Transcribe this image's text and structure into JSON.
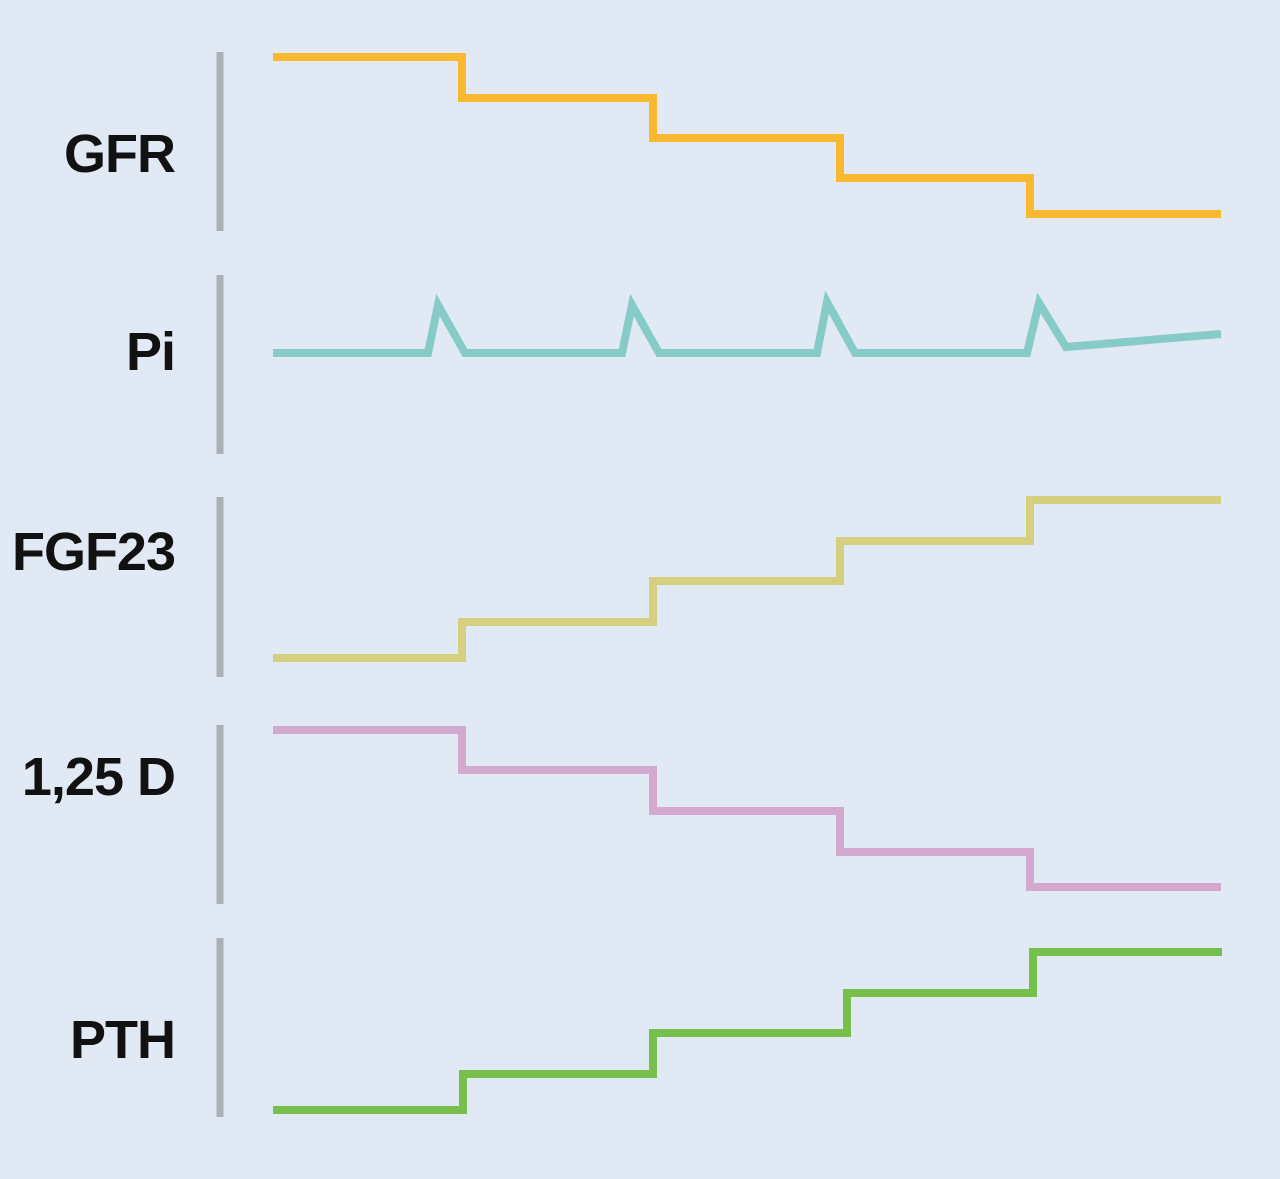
{
  "colors": {
    "background": "#e0e9f4",
    "axis": "#a9b0b6",
    "label": "#111111"
  },
  "rows": [
    {
      "label": "GFR",
      "color": "#f9b92e",
      "trend": "step-down",
      "levels": [
        5,
        4,
        3,
        2,
        1.1
      ]
    },
    {
      "label": "Pi",
      "color": "#86cbc7",
      "trend": "flat-with-spikes",
      "levels": [
        1,
        1,
        1,
        1,
        1.5
      ],
      "spikes": 4
    },
    {
      "label": "FGF23",
      "color": "#d6cf80",
      "trend": "step-up",
      "levels": [
        1,
        1.9,
        2.9,
        3.9,
        4.9
      ]
    },
    {
      "label": "1,25 D",
      "color": "#d4a9d0",
      "trend": "step-down",
      "levels": [
        5,
        4,
        3,
        2,
        1.1
      ]
    },
    {
      "label": "PTH",
      "color": "#78c04c",
      "trend": "step-up",
      "levels": [
        1,
        1.9,
        2.9,
        3.9,
        4.9
      ]
    }
  ]
}
